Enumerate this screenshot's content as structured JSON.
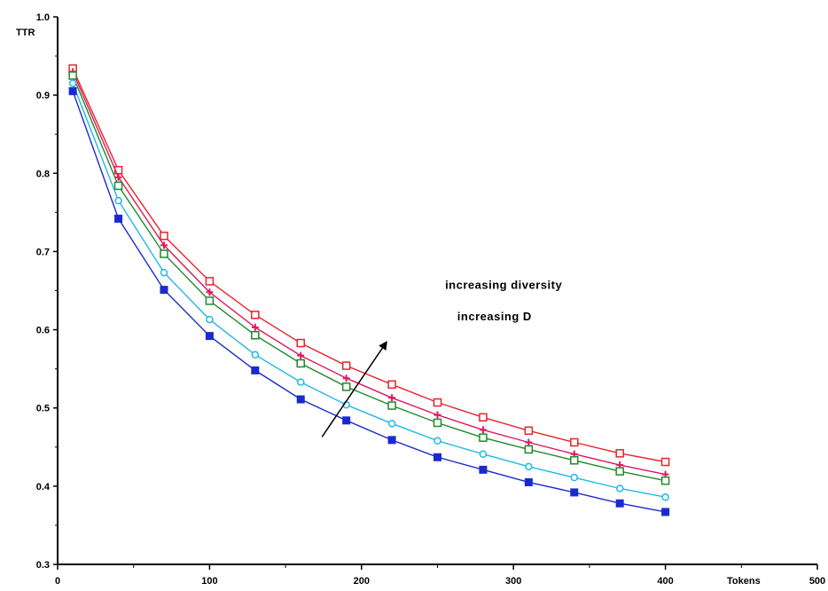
{
  "chart_data": {
    "type": "line",
    "title": "",
    "xlabel": "Tokens",
    "ylabel": "TTR",
    "xlim": [
      0,
      500
    ],
    "ylim": [
      0.3,
      1.0
    ],
    "x_ticks": [
      0,
      100,
      200,
      300,
      400,
      500
    ],
    "x_tick_labels": [
      "0",
      "100",
      "200",
      "300",
      "400",
      "500"
    ],
    "y_ticks": [
      0.3,
      0.4,
      0.5,
      0.6,
      0.7,
      0.8,
      0.9,
      1.0
    ],
    "y_tick_labels": [
      "0.3",
      "0.4",
      "0.5",
      "0.6",
      "0.7",
      "0.8",
      "0.9",
      "1.0"
    ],
    "grid": false,
    "x": [
      10,
      40,
      70,
      100,
      130,
      160,
      190,
      220,
      250,
      280,
      310,
      340,
      370,
      400
    ],
    "series": [
      {
        "color": "#e8242c",
        "marker": "open-square",
        "values": [
          0.934,
          0.804,
          0.72,
          0.662,
          0.619,
          0.583,
          0.554,
          0.53,
          0.507,
          0.488,
          0.471,
          0.456,
          0.442,
          0.431
        ]
      },
      {
        "color": "#e0185e",
        "marker": "plus",
        "values": [
          0.93,
          0.795,
          0.708,
          0.648,
          0.603,
          0.567,
          0.538,
          0.513,
          0.491,
          0.472,
          0.456,
          0.441,
          0.427,
          0.415
        ]
      },
      {
        "color": "#1e8a2a",
        "marker": "open-square",
        "values": [
          0.925,
          0.784,
          0.697,
          0.637,
          0.593,
          0.557,
          0.527,
          0.503,
          0.481,
          0.462,
          0.447,
          0.433,
          0.419,
          0.407
        ]
      },
      {
        "color": "#20b8e8",
        "marker": "open-circle",
        "values": [
          0.915,
          0.765,
          0.673,
          0.613,
          0.568,
          0.533,
          0.504,
          0.48,
          0.458,
          0.441,
          0.425,
          0.411,
          0.397,
          0.386
        ]
      },
      {
        "color": "#1a2ad0",
        "marker": "filled-square",
        "values": [
          0.905,
          0.742,
          0.651,
          0.592,
          0.548,
          0.511,
          0.484,
          0.459,
          0.437,
          0.421,
          0.405,
          0.392,
          0.378,
          0.367
        ]
      }
    ],
    "annotations": [
      {
        "text": "increasing diversity",
        "x": 255,
        "y": 0.652
      },
      {
        "text": "increasing D",
        "x": 263,
        "y": 0.612
      }
    ],
    "arrow": {
      "from": [
        174,
        0.463
      ],
      "to": [
        216,
        0.583
      ]
    }
  }
}
